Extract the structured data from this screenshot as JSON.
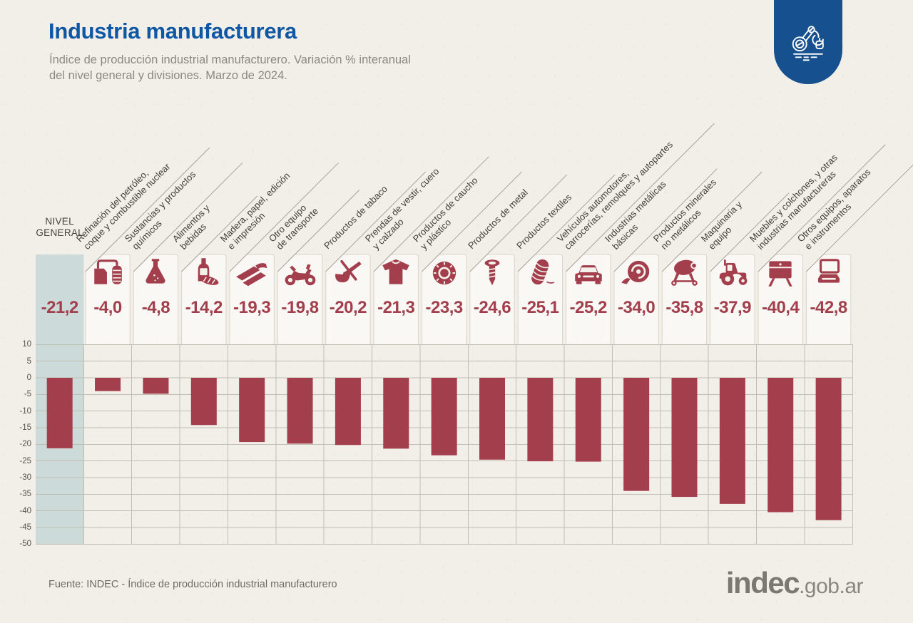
{
  "header": {
    "title": "Industria manufacturera",
    "subtitle_line1": "Índice de producción industrial manufacturero. Variación % interanual",
    "subtitle_line2": "del nivel general y divisiones. Marzo de 2024.",
    "badge_icon": "robot-arm-icon"
  },
  "footer": {
    "source": "Fuente: INDEC - Índice de producción industrial manufacturero",
    "logo_text": "indec",
    "logo_suffix": ".gob.ar"
  },
  "colors": {
    "background": "#f2efe9",
    "bar": "#a33e4c",
    "value_text": "#a33e4c",
    "title_blue": "#0d57a5",
    "badge_blue": "#17508f",
    "band": "#ccdbda",
    "grid": "#c2bdb3",
    "card_border": "#d9d4c9",
    "leader": "#a8a49a",
    "subtitle_gray": "#8b887e",
    "label_dark": "#403e38",
    "footer_gray": "#6e6b63",
    "logo_gray": "#7b786f"
  },
  "chart_data": {
    "type": "bar",
    "title": "Industria manufacturera",
    "subtitle": "Índice de producción industrial manufacturero. Variación % interanual del nivel general y divisiones. Marzo de 2024.",
    "ylabel": "Variación % interanual",
    "unit": "%",
    "ylim": [
      -50,
      10
    ],
    "ytick_interval": 5,
    "yticks": [
      10,
      5,
      0,
      -5,
      -10,
      -15,
      -20,
      -25,
      -30,
      -35,
      -40,
      -45,
      -50
    ],
    "grid": true,
    "general": {
      "label": "NIVEL GENERAL",
      "label_lines": [
        "NIVEL",
        "GENERAL"
      ],
      "value": -21.2,
      "display": "-21,2"
    },
    "categories": [
      {
        "label": "Refinación del petróleo, coque y combustible nuclear",
        "label_lines": [
          "Refinación del petróleo,",
          "coque y combustible nuclear"
        ],
        "icon": "oil-refinery-icon",
        "value": -4.0,
        "display": "-4,0"
      },
      {
        "label": "Sustancias y productos químicos",
        "label_lines": [
          "Sustancias y productos",
          "químicos"
        ],
        "icon": "chemical-flask-icon",
        "value": -4.8,
        "display": "-4,8"
      },
      {
        "label": "Alimentos y bebidas",
        "label_lines": [
          "Alimentos y",
          "bebidas"
        ],
        "icon": "food-beverage-icon",
        "value": -14.2,
        "display": "-14,2"
      },
      {
        "label": "Madera, papel, edición e impresión",
        "label_lines": [
          "Madera, papel, edición",
          "e impresión"
        ],
        "icon": "wood-paper-icon",
        "value": -19.3,
        "display": "-19,3"
      },
      {
        "label": "Otro equipo de transporte",
        "label_lines": [
          "Otro equipo",
          "de transporte"
        ],
        "icon": "motorcycle-icon",
        "value": -19.8,
        "display": "-19,8"
      },
      {
        "label": "Productos de tabaco",
        "label_lines": [
          "Productos de tabaco"
        ],
        "icon": "tobacco-pipe-icon",
        "value": -20.2,
        "display": "-20,2"
      },
      {
        "label": "Prendas de vestir, cuero y calzado",
        "label_lines": [
          "Prendas de vestir, cuero",
          "y calzado"
        ],
        "icon": "clothing-icon",
        "value": -21.3,
        "display": "-21,3"
      },
      {
        "label": "Productos de caucho y plástico",
        "label_lines": [
          "Productos de caucho",
          "y plástico"
        ],
        "icon": "tire-icon",
        "value": -23.3,
        "display": "-23,3"
      },
      {
        "label": "Productos de metal",
        "label_lines": [
          "Productos de metal"
        ],
        "icon": "bolt-icon",
        "value": -24.6,
        "display": "-24,6"
      },
      {
        "label": "Productos textiles",
        "label_lines": [
          "Productos textiles"
        ],
        "icon": "thread-spool-icon",
        "value": -25.1,
        "display": "-25,1"
      },
      {
        "label": "Vehículos automotores, carrocerías, remolques y autopartes",
        "label_lines": [
          "Vehículos automotores,",
          "carrocerías, remolques y autopartes"
        ],
        "icon": "car-icon",
        "value": -25.2,
        "display": "-25,2"
      },
      {
        "label": "Industrias metálicas básicas",
        "label_lines": [
          "Industrias metálicas",
          "básicas"
        ],
        "icon": "metal-coil-icon",
        "value": -34.0,
        "display": "-34,0"
      },
      {
        "label": "Productos minerales no metálicos",
        "label_lines": [
          "Productos minerales",
          "no metálicos"
        ],
        "icon": "cement-mixer-icon",
        "value": -35.8,
        "display": "-35,8"
      },
      {
        "label": "Maquinaria y equipo",
        "label_lines": [
          "Maquinaria y",
          "equipo"
        ],
        "icon": "tractor-icon",
        "value": -37.9,
        "display": "-37,9"
      },
      {
        "label": "Muebles y colchones, y otras industrias manufactureras",
        "label_lines": [
          "Muebles y colchones, y otras",
          "industrias manufactureras"
        ],
        "icon": "furniture-icon",
        "value": -40.4,
        "display": "-40,4"
      },
      {
        "label": "Otros equipos, aparatos e instrumentos",
        "label_lines": [
          "Otros equipos, aparatos",
          "e instrumentos"
        ],
        "icon": "laptop-icon",
        "value": -42.8,
        "display": "-42,8"
      }
    ]
  }
}
